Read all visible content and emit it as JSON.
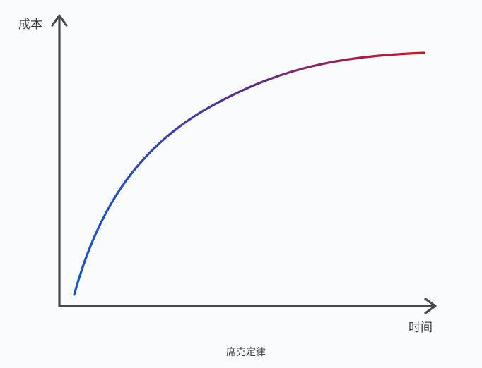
{
  "diagram": {
    "y_axis_label": "成本",
    "x_axis_label": "时间",
    "caption": "席克定律",
    "colors": {
      "axis": "#46494f",
      "text": "#3a3d42",
      "curve_start": "#1455cc",
      "curve_mid": "#5a2d8c",
      "curve_end": "#d0141e",
      "background": "#fafbfc"
    }
  }
}
